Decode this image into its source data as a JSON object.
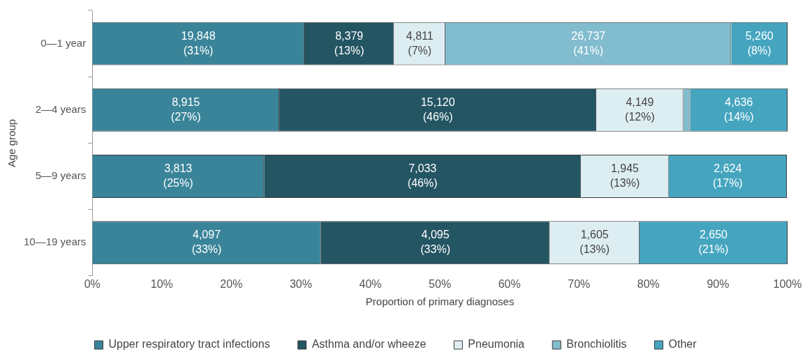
{
  "chart_data": {
    "type": "bar",
    "orientation": "horizontal",
    "stacked": true,
    "xlabel": "Proportion of primary diagnoses",
    "ylabel": "Age group",
    "categories": [
      "0—1 year",
      "2—4 years",
      "5—9 years",
      "10—19 years"
    ],
    "series": [
      {
        "name": "Upper respiratory tract infections",
        "color": "#3a8499",
        "values": [
          30.5,
          26.9,
          24.7,
          32.9
        ],
        "value_labels": [
          "19,848\n(31%)",
          "8,915\n(27%)",
          "3,813\n(25%)",
          "4,097\n(33%)"
        ]
      },
      {
        "name": "Asthma and/or wheeze",
        "color": "#245563",
        "values": [
          12.9,
          45.6,
          45.6,
          32.9
        ],
        "value_labels": [
          "8,379\n(13%)",
          "15,120\n(46%)",
          "7,033\n(46%)",
          "4,095\n(33%)"
        ]
      },
      {
        "name": "Pneumonia",
        "color": "#ddeef3",
        "values": [
          7.4,
          12.5,
          12.6,
          12.9
        ],
        "value_labels": [
          "4,811\n(7%)",
          "4,149\n(12%)",
          "1,945\n(13%)",
          "1,605\n(13%)"
        ]
      },
      {
        "name": "Bronchiolitis",
        "color": "#82bccf",
        "values": [
          41.1,
          1.0,
          null,
          null
        ],
        "value_labels": [
          "26,737\n(41%)",
          null,
          null,
          null
        ]
      },
      {
        "name": "Other",
        "color": "#45a5bf",
        "values": [
          8.1,
          14.0,
          17.0,
          21.3
        ],
        "value_labels": [
          "5,260\n(8%)",
          "4,636\n(14%)",
          "2,624\n(17%)",
          "2,650\n(21%)"
        ]
      }
    ],
    "xlim": [
      0,
      100
    ],
    "xticks": [
      {
        "value": 0,
        "label": "0%"
      },
      {
        "value": 10,
        "label": "10%"
      },
      {
        "value": 20,
        "label": "20%"
      },
      {
        "value": 30,
        "label": "30%"
      },
      {
        "value": 40,
        "label": "40%"
      },
      {
        "value": 50,
        "label": "50%"
      },
      {
        "value": 60,
        "label": "60%"
      },
      {
        "value": 70,
        "label": "70%"
      },
      {
        "value": 80,
        "label": "80%"
      },
      {
        "value": 90,
        "label": "90%"
      },
      {
        "value": 100,
        "label": "100%"
      }
    ],
    "grid": false,
    "legend": "bottom"
  }
}
